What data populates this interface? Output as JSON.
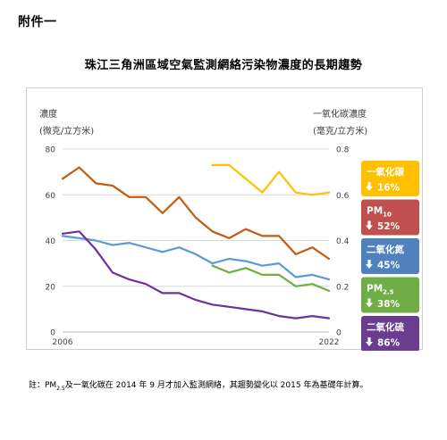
{
  "annex_label": "附件一",
  "chart_title": "珠江三角洲區域空氣監測網絡污染物濃度的長期趨勢",
  "footnote": {
    "prefix": "註：PM",
    "sub": "2.5",
    "rest": "及一氧化碳在 2014 年 9 月才加入監測網絡，其趨勢變化以 2015 年為基礎年計算。"
  },
  "chart_data": {
    "type": "line",
    "title": "珠江三角洲區域空氣監測網絡污染物濃度的長期趨勢",
    "ylabel_left": [
      "濃度",
      "(微克/立方米)"
    ],
    "ylabel_right": [
      "一氧化碳濃度",
      "(毫克/立方米)"
    ],
    "x_ticks": [
      "2006",
      "2022"
    ],
    "xlim": [
      2006,
      2022
    ],
    "ylim_left": [
      0,
      80
    ],
    "ylim_right": [
      0,
      0.8
    ],
    "y_ticks_left": [
      "0",
      "20",
      "40",
      "60",
      "80"
    ],
    "y_ticks_right": [
      "0",
      "0.2",
      "0.4",
      "0.6",
      "0.8"
    ],
    "grid": "horizontal",
    "legend_position": "right",
    "series": [
      {
        "name": "一氧化碳",
        "change": "16%",
        "axis": "right",
        "color": "#FFC000",
        "x": [
          2015,
          2016,
          2017,
          2018,
          2019,
          2020,
          2021,
          2022
        ],
        "values": [
          0.73,
          0.73,
          0.67,
          0.61,
          0.7,
          0.61,
          0.6,
          0.61
        ]
      },
      {
        "name": "PM",
        "name_sub": "10",
        "change": "52%",
        "axis": "left",
        "color": "#C55A11",
        "x": [
          2006,
          2007,
          2008,
          2009,
          2010,
          2011,
          2012,
          2013,
          2014,
          2015,
          2016,
          2017,
          2018,
          2019,
          2020,
          2021,
          2022
        ],
        "values": [
          67,
          72,
          65,
          64,
          59,
          59,
          52,
          59,
          50,
          44,
          41,
          45,
          42,
          42,
          34,
          37,
          32
        ]
      },
      {
        "name": "二氧化氮",
        "change": "45%",
        "axis": "left",
        "color": "#5B9BD5",
        "x": [
          2006,
          2007,
          2008,
          2009,
          2010,
          2011,
          2012,
          2013,
          2014,
          2015,
          2016,
          2017,
          2018,
          2019,
          2020,
          2021,
          2022
        ],
        "values": [
          42,
          41,
          40,
          38,
          39,
          37,
          35,
          37,
          34,
          30,
          32,
          31,
          29,
          30,
          24,
          25,
          23
        ]
      },
      {
        "name": "PM",
        "name_sub": "2.5",
        "change": "38%",
        "axis": "left",
        "color": "#70AD47",
        "x": [
          2015,
          2016,
          2017,
          2018,
          2019,
          2020,
          2021,
          2022
        ],
        "values": [
          29,
          26,
          28,
          25,
          25,
          20,
          21,
          18
        ]
      },
      {
        "name": "二氧化硫",
        "change": "86%",
        "axis": "left",
        "color": "#7030A0",
        "x": [
          2006,
          2007,
          2008,
          2009,
          2010,
          2011,
          2012,
          2013,
          2014,
          2015,
          2016,
          2017,
          2018,
          2019,
          2020,
          2021,
          2022
        ],
        "values": [
          43,
          44,
          36,
          26,
          23,
          21,
          17,
          17,
          14,
          12,
          11,
          10,
          9,
          7,
          6,
          7,
          6
        ]
      }
    ],
    "legend_order": [
      0,
      1,
      2,
      3,
      4
    ],
    "legend_colors": [
      "#FFC000",
      "#C0504D",
      "#4F81BD",
      "#70AD47",
      "#6A3D8F"
    ]
  }
}
